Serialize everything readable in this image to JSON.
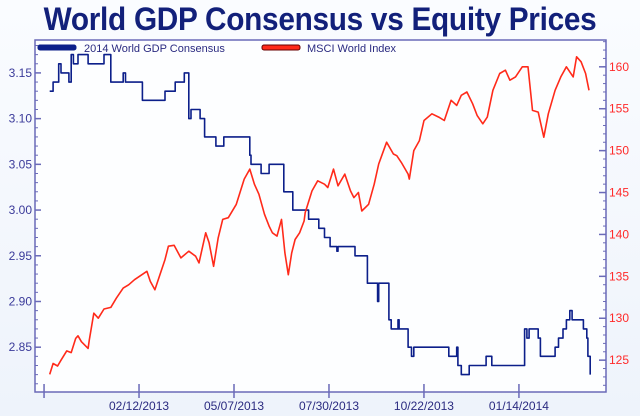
{
  "chart_data": {
    "type": "line",
    "title": "World GDP Consensus vs Equity Prices",
    "xlim": [
      "2012-11-12",
      "2014-04-01"
    ],
    "x_ticks": [
      "2012-11-20",
      "2013-02-12",
      "2013-05-07",
      "2013-07-30",
      "2013-10-22",
      "2014-01-14"
    ],
    "x_tick_labels": [
      "",
      "02/12/2013",
      "05/07/2013",
      "07/30/2013",
      "10/22/2013",
      "01/14/2014"
    ],
    "y_left": {
      "lim": [
        2.801,
        3.186
      ],
      "ticks": [
        "2.85",
        "2.90",
        "2.95",
        "3.00",
        "3.05",
        "3.10",
        "3.15"
      ],
      "color": "#3a3a9a"
    },
    "y_right": {
      "lim": [
        121.2,
        163.2
      ],
      "ticks": [
        "125",
        "130",
        "135",
        "140",
        "145",
        "150",
        "155",
        "160"
      ],
      "color": "#ff2a2a"
    },
    "grid": false,
    "legend_placement": "top-left",
    "series": [
      {
        "name": "2014 World GDP Consensus",
        "axis": "left",
        "color": "#0c1f8a",
        "style": "step",
        "points": [
          [
            "2012-11-25",
            3.13
          ],
          [
            "2012-11-28",
            3.14
          ],
          [
            "2012-12-03",
            3.16
          ],
          [
            "2012-12-05",
            3.15
          ],
          [
            "2012-12-12",
            3.14
          ],
          [
            "2012-12-14",
            3.17
          ],
          [
            "2012-12-16",
            3.16
          ],
          [
            "2012-12-20",
            3.17
          ],
          [
            "2012-12-29",
            3.16
          ],
          [
            "2013-01-12",
            3.17
          ],
          [
            "2013-01-18",
            3.14
          ],
          [
            "2013-01-29",
            3.15
          ],
          [
            "2013-01-31",
            3.14
          ],
          [
            "2013-02-15",
            3.12
          ],
          [
            "2013-03-07",
            3.13
          ],
          [
            "2013-03-16",
            3.14
          ],
          [
            "2013-03-24",
            3.15
          ],
          [
            "2013-03-28",
            3.1
          ],
          [
            "2013-03-30",
            3.11
          ],
          [
            "2013-04-07",
            3.1
          ],
          [
            "2013-04-11",
            3.08
          ],
          [
            "2013-04-21",
            3.07
          ],
          [
            "2013-04-28",
            3.08
          ],
          [
            "2013-05-21",
            3.06
          ],
          [
            "2013-05-22",
            3.05
          ],
          [
            "2013-05-31",
            3.04
          ],
          [
            "2013-06-07",
            3.05
          ],
          [
            "2013-06-20",
            3.02
          ],
          [
            "2013-06-28",
            3.0
          ],
          [
            "2013-07-12",
            2.99
          ],
          [
            "2013-07-21",
            2.98
          ],
          [
            "2013-07-26",
            2.97
          ],
          [
            "2013-07-31",
            2.96
          ],
          [
            "2013-08-06",
            2.955
          ],
          [
            "2013-08-07",
            2.96
          ],
          [
            "2013-08-22",
            2.95
          ],
          [
            "2013-09-02",
            2.92
          ],
          [
            "2013-09-11",
            2.9
          ],
          [
            "2013-09-12",
            2.92
          ],
          [
            "2013-09-21",
            2.88
          ],
          [
            "2013-09-23",
            2.87
          ],
          [
            "2013-09-29",
            2.88
          ],
          [
            "2013-09-30",
            2.87
          ],
          [
            "2013-10-08",
            2.85
          ],
          [
            "2013-10-11",
            2.84
          ],
          [
            "2013-10-13",
            2.85
          ],
          [
            "2013-11-13",
            2.84
          ],
          [
            "2013-11-20",
            2.85
          ],
          [
            "2013-11-21",
            2.83
          ],
          [
            "2013-11-24",
            2.82
          ],
          [
            "2013-12-01",
            2.83
          ],
          [
            "2013-12-16",
            2.84
          ],
          [
            "2013-12-21",
            2.83
          ],
          [
            "2014-01-19",
            2.87
          ],
          [
            "2014-01-21",
            2.86
          ],
          [
            "2014-01-23",
            2.87
          ],
          [
            "2014-01-31",
            2.86
          ],
          [
            "2014-02-02",
            2.84
          ],
          [
            "2014-02-15",
            2.85
          ],
          [
            "2014-02-18",
            2.86
          ],
          [
            "2014-02-22",
            2.87
          ],
          [
            "2014-02-25",
            2.88
          ],
          [
            "2014-02-28",
            2.89
          ],
          [
            "2014-03-02",
            2.88
          ],
          [
            "2014-03-10",
            2.88
          ],
          [
            "2014-03-12",
            2.87
          ],
          [
            "2014-03-15",
            2.86
          ],
          [
            "2014-03-16",
            2.84
          ],
          [
            "2014-03-18",
            2.82
          ]
        ]
      },
      {
        "name": "MSCI World Index",
        "axis": "right",
        "color": "#ff2a1a",
        "style": "line",
        "points": [
          [
            "2012-11-25",
            123.3
          ],
          [
            "2012-11-28",
            124.6
          ],
          [
            "2012-12-02",
            124.3
          ],
          [
            "2012-12-05",
            125.0
          ],
          [
            "2012-12-10",
            126.1
          ],
          [
            "2012-12-14",
            125.9
          ],
          [
            "2012-12-18",
            127.6
          ],
          [
            "2012-12-20",
            127.9
          ],
          [
            "2012-12-23",
            127.2
          ],
          [
            "2012-12-29",
            126.4
          ],
          [
            "2012-12-30",
            127.4
          ],
          [
            "2013-01-03",
            130.6
          ],
          [
            "2013-01-07",
            130.0
          ],
          [
            "2013-01-12",
            131.1
          ],
          [
            "2013-01-18",
            131.3
          ],
          [
            "2013-01-23",
            132.4
          ],
          [
            "2013-01-29",
            133.6
          ],
          [
            "2013-02-03",
            134.0
          ],
          [
            "2013-02-08",
            134.6
          ],
          [
            "2013-02-19",
            135.6
          ],
          [
            "2013-02-22",
            134.4
          ],
          [
            "2013-02-26",
            133.4
          ],
          [
            "2013-03-03",
            135.4
          ],
          [
            "2013-03-07",
            137.0
          ],
          [
            "2013-03-10",
            138.6
          ],
          [
            "2013-03-15",
            138.7
          ],
          [
            "2013-03-21",
            137.2
          ],
          [
            "2013-03-28",
            138.0
          ],
          [
            "2013-04-03",
            137.4
          ],
          [
            "2013-04-06",
            136.6
          ],
          [
            "2013-04-12",
            140.2
          ],
          [
            "2013-04-15",
            139.0
          ],
          [
            "2013-04-19",
            136.2
          ],
          [
            "2013-04-23",
            139.6
          ],
          [
            "2013-04-27",
            141.8
          ],
          [
            "2013-05-02",
            142.0
          ],
          [
            "2013-05-09",
            143.6
          ],
          [
            "2013-05-16",
            146.6
          ],
          [
            "2013-05-21",
            147.8
          ],
          [
            "2013-05-25",
            146.0
          ],
          [
            "2013-05-29",
            144.8
          ],
          [
            "2013-06-03",
            142.4
          ],
          [
            "2013-06-07",
            141.0
          ],
          [
            "2013-06-10",
            140.2
          ],
          [
            "2013-06-14",
            139.8
          ],
          [
            "2013-06-18",
            141.8
          ],
          [
            "2013-06-21",
            137.8
          ],
          [
            "2013-06-24",
            135.2
          ],
          [
            "2013-06-27",
            137.8
          ],
          [
            "2013-06-30",
            139.4
          ],
          [
            "2013-07-04",
            140.2
          ],
          [
            "2013-07-08",
            141.6
          ],
          [
            "2013-07-09",
            142.6
          ],
          [
            "2013-07-15",
            145.2
          ],
          [
            "2013-07-20",
            146.4
          ],
          [
            "2013-07-26",
            146.0
          ],
          [
            "2013-07-29",
            145.6
          ],
          [
            "2013-08-03",
            147.8
          ],
          [
            "2013-08-07",
            145.8
          ],
          [
            "2013-08-13",
            147.2
          ],
          [
            "2013-08-18",
            145.2
          ],
          [
            "2013-08-21",
            144.4
          ],
          [
            "2013-08-25",
            145.0
          ],
          [
            "2013-08-28",
            142.8
          ],
          [
            "2013-09-03",
            143.6
          ],
          [
            "2013-09-08",
            146.0
          ],
          [
            "2013-09-12",
            148.4
          ],
          [
            "2013-09-19",
            151.0
          ],
          [
            "2013-09-25",
            149.6
          ],
          [
            "2013-09-28",
            149.4
          ],
          [
            "2013-10-02",
            148.6
          ],
          [
            "2013-10-08",
            147.2
          ],
          [
            "2013-10-09",
            146.6
          ],
          [
            "2013-10-13",
            150.0
          ],
          [
            "2013-10-18",
            151.2
          ],
          [
            "2013-10-22",
            153.6
          ],
          [
            "2013-10-29",
            154.4
          ],
          [
            "2013-11-04",
            154.0
          ],
          [
            "2013-11-09",
            153.6
          ],
          [
            "2013-11-15",
            156.0
          ],
          [
            "2013-11-20",
            155.4
          ],
          [
            "2013-11-24",
            156.6
          ],
          [
            "2013-11-29",
            157.0
          ],
          [
            "2013-12-04",
            155.6
          ],
          [
            "2013-12-08",
            154.2
          ],
          [
            "2013-12-13",
            153.2
          ],
          [
            "2013-12-17",
            154.0
          ],
          [
            "2013-12-22",
            157.2
          ],
          [
            "2013-12-28",
            159.2
          ],
          [
            "2014-01-02",
            159.6
          ],
          [
            "2014-01-06",
            158.4
          ],
          [
            "2014-01-11",
            158.8
          ],
          [
            "2014-01-17",
            160.0
          ],
          [
            "2014-01-22",
            160.0
          ],
          [
            "2014-01-26",
            154.8
          ],
          [
            "2014-01-31",
            154.6
          ],
          [
            "2014-02-05",
            151.6
          ],
          [
            "2014-02-09",
            154.4
          ],
          [
            "2014-02-15",
            157.2
          ],
          [
            "2014-02-20",
            158.8
          ],
          [
            "2014-02-25",
            160.0
          ],
          [
            "2014-03-03",
            158.8
          ],
          [
            "2014-03-06",
            161.2
          ],
          [
            "2014-03-10",
            160.6
          ],
          [
            "2014-03-14",
            159.2
          ],
          [
            "2014-03-17",
            157.2
          ]
        ]
      }
    ]
  }
}
